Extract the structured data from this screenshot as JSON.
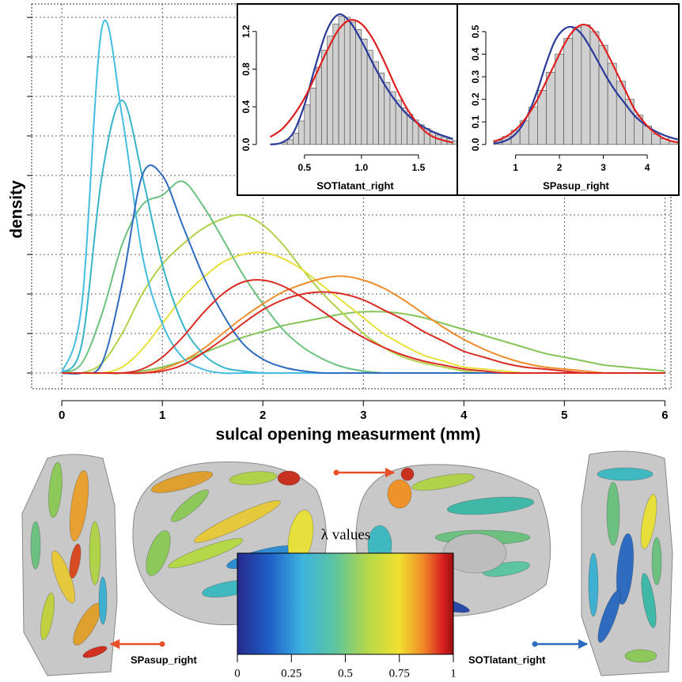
{
  "chart_data": [
    {
      "type": "line",
      "x_label": "sulcal opening measurment (mm)",
      "y_label": "density",
      "xlim": [
        -0.3,
        6.06
      ],
      "xticks": [
        0,
        1,
        2,
        3,
        4,
        5,
        6
      ],
      "ylim": [
        -0.08,
        1.868
      ],
      "yticks": [
        0,
        0.2,
        0.4,
        0.6,
        0.8,
        1.0,
        1.2,
        1.4,
        1.6,
        1.8
      ],
      "grid": true,
      "x": [
        0,
        0.2,
        0.4,
        0.6,
        0.8,
        1.0,
        1.2,
        1.4,
        1.6,
        1.8,
        2.0,
        2.2,
        2.4,
        2.6,
        2.8,
        3.0,
        3.2,
        3.4,
        3.6,
        3.8,
        4.0,
        4.2,
        4.4,
        4.6,
        4.8,
        5.0,
        5.2,
        5.4,
        5.6,
        5.8,
        6.0
      ],
      "series": [
        {
          "color": "#86c45a",
          "values": [
            0,
            0,
            0,
            0,
            0.01,
            0.03,
            0.06,
            0.1,
            0.14,
            0.18,
            0.21,
            0.24,
            0.26,
            0.28,
            0.3,
            0.31,
            0.31,
            0.3,
            0.28,
            0.25,
            0.22,
            0.19,
            0.16,
            0.13,
            0.1,
            0.08,
            0.06,
            0.04,
            0.03,
            0.02,
            0.01
          ]
        },
        {
          "color": "#b0d24a",
          "values": [
            0,
            0,
            0.05,
            0.2,
            0.4,
            0.55,
            0.65,
            0.73,
            0.78,
            0.8,
            0.75,
            0.65,
            0.52,
            0.4,
            0.3,
            0.2,
            0.13,
            0.08,
            0.05,
            0.03,
            0.01,
            0,
            0,
            0,
            0,
            0,
            0,
            0,
            0,
            0,
            0
          ]
        },
        {
          "color": "#e6df3c",
          "values": [
            0,
            0,
            0,
            0.03,
            0.12,
            0.25,
            0.38,
            0.48,
            0.56,
            0.6,
            0.61,
            0.58,
            0.52,
            0.44,
            0.36,
            0.28,
            0.2,
            0.14,
            0.09,
            0.06,
            0.03,
            0.02,
            0.01,
            0,
            0,
            0,
            0,
            0,
            0,
            0,
            0
          ]
        },
        {
          "color": "#6cc080",
          "values": [
            0,
            0.05,
            0.3,
            0.65,
            0.85,
            0.9,
            0.97,
            0.85,
            0.68,
            0.5,
            0.35,
            0.22,
            0.13,
            0.07,
            0.03,
            0.01,
            0,
            0,
            0,
            0,
            0,
            0,
            0,
            0,
            0,
            0,
            0,
            0,
            0,
            0,
            0
          ]
        },
        {
          "color": "#ef8c2c",
          "values": [
            0,
            0,
            0,
            0,
            0,
            0.02,
            0.06,
            0.12,
            0.2,
            0.28,
            0.35,
            0.41,
            0.45,
            0.48,
            0.49,
            0.47,
            0.43,
            0.37,
            0.3,
            0.23,
            0.17,
            0.12,
            0.08,
            0.05,
            0.03,
            0.02,
            0.01,
            0,
            0,
            0,
            0
          ]
        },
        {
          "color": "#38b4c8",
          "values": [
            0,
            0.15,
            1.0,
            1.38,
            1.0,
            0.55,
            0.25,
            0.1,
            0.03,
            0.01,
            0,
            0,
            0,
            0,
            0,
            0,
            0,
            0,
            0,
            0,
            0,
            0,
            0,
            0,
            0,
            0,
            0,
            0,
            0,
            0,
            0
          ]
        },
        {
          "color": "#45bde0",
          "values": [
            0,
            0.35,
            1.75,
            1.3,
            0.6,
            0.25,
            0.08,
            0.02,
            0,
            0,
            0,
            0,
            0,
            0,
            0,
            0,
            0,
            0,
            0,
            0,
            0,
            0,
            0,
            0,
            0,
            0,
            0,
            0,
            0,
            0,
            0
          ]
        },
        {
          "color": "#2f6cc0",
          "values": [
            0,
            0,
            0.05,
            0.45,
            1.0,
            1.0,
            0.75,
            0.5,
            0.3,
            0.15,
            0.07,
            0.03,
            0.01,
            0,
            0,
            0,
            0,
            0,
            0,
            0,
            0,
            0,
            0,
            0,
            0,
            0,
            0,
            0,
            0,
            0,
            0
          ]
        },
        {
          "color": "#d92b24",
          "values": [
            0,
            0,
            0,
            0,
            0,
            0.01,
            0.04,
            0.1,
            0.17,
            0.25,
            0.32,
            0.37,
            0.4,
            0.41,
            0.4,
            0.37,
            0.32,
            0.27,
            0.21,
            0.16,
            0.11,
            0.08,
            0.05,
            0.03,
            0.02,
            0.01,
            0,
            0,
            0,
            0,
            0
          ]
        },
        {
          "color": "#d92b24",
          "values": [
            0,
            0,
            0,
            0,
            0.02,
            0.08,
            0.18,
            0.3,
            0.4,
            0.46,
            0.47,
            0.44,
            0.38,
            0.31,
            0.24,
            0.18,
            0.13,
            0.09,
            0.06,
            0.04,
            0.02,
            0.01,
            0,
            0,
            0,
            0,
            0,
            0,
            0,
            0,
            0
          ]
        }
      ]
    },
    {
      "type": "histogram",
      "x_label": "SOTlatant_right",
      "color": "#d0d0d0",
      "xlim": [
        0.12,
        1.84
      ],
      "xticks": [
        0.5,
        {
          "value": 1,
          "label": "1.0"
        },
        1.5
      ],
      "ylim": [
        -0.06,
        1.45
      ],
      "yticks": [
        {
          "value": 0,
          "label": "0.0"
        },
        0.4,
        0.8,
        1.2
      ],
      "bins": [
        0.3,
        0.35,
        0.4,
        0.45,
        0.5,
        0.55,
        0.6,
        0.65,
        0.7,
        0.75,
        0.8,
        0.85,
        0.9,
        0.95,
        1.0,
        1.05,
        1.1,
        1.15,
        1.2,
        1.25,
        1.3,
        1.35,
        1.4,
        1.45,
        1.5,
        1.55,
        1.6,
        1.65,
        1.7,
        1.75,
        1.8,
        1.85
      ],
      "values": [
        0.02,
        0.05,
        0.12,
        0.25,
        0.42,
        0.6,
        0.82,
        1.0,
        1.15,
        1.28,
        1.36,
        1.35,
        1.3,
        1.22,
        1.12,
        1.0,
        0.88,
        0.76,
        0.66,
        0.56,
        0.47,
        0.39,
        0.32,
        0.26,
        0.21,
        0.17,
        0.13,
        0.1,
        0.08,
        0.06,
        0.04
      ],
      "fits": [
        {
          "color": "#2a3a9a",
          "x": [
            0.2,
            0.3,
            0.4,
            0.5,
            0.6,
            0.7,
            0.8,
            0.9,
            1.0,
            1.1,
            1.2,
            1.3,
            1.4,
            1.5,
            1.6,
            1.7,
            1.8
          ],
          "values": [
            0,
            0.02,
            0.12,
            0.42,
            0.85,
            1.22,
            1.38,
            1.3,
            1.1,
            0.86,
            0.64,
            0.46,
            0.32,
            0.22,
            0.15,
            0.1,
            0.06
          ]
        },
        {
          "color": "#e02020",
          "x": [
            0.2,
            0.3,
            0.4,
            0.5,
            0.6,
            0.7,
            0.8,
            0.9,
            1.0,
            1.1,
            1.2,
            1.3,
            1.4,
            1.5,
            1.6,
            1.7,
            1.8
          ],
          "values": [
            0.08,
            0.16,
            0.3,
            0.49,
            0.74,
            1.0,
            1.22,
            1.32,
            1.28,
            1.12,
            0.88,
            0.61,
            0.38,
            0.21,
            0.1,
            0.05,
            0.02
          ]
        }
      ]
    },
    {
      "type": "histogram",
      "x_label": "SPasup_right",
      "color": "#d0d0d0",
      "xlim": [
        0.43,
        4.72
      ],
      "xticks": [
        1,
        2,
        3,
        4
      ],
      "ylim": [
        -0.025,
        0.605
      ],
      "yticks": [
        {
          "value": 0,
          "label": "0.0"
        },
        0.1,
        0.2,
        0.3,
        0.4,
        0.5
      ],
      "bins": [
        0.5,
        0.7,
        0.9,
        1.1,
        1.3,
        1.5,
        1.7,
        1.9,
        2.1,
        2.3,
        2.5,
        2.7,
        2.9,
        3.1,
        3.3,
        3.5,
        3.7,
        3.9,
        4.1,
        4.3,
        4.5,
        4.7
      ],
      "values": [
        0.018,
        0.035,
        0.063,
        0.105,
        0.165,
        0.24,
        0.32,
        0.4,
        0.47,
        0.52,
        0.53,
        0.5,
        0.44,
        0.36,
        0.28,
        0.2,
        0.13,
        0.082,
        0.047,
        0.025,
        0.013
      ],
      "fits": [
        {
          "color": "#2a3a9a",
          "x": [
            0.5,
            0.7,
            0.9,
            1.1,
            1.3,
            1.5,
            1.7,
            1.9,
            2.1,
            2.3,
            2.5,
            2.7,
            2.9,
            3.1,
            3.3,
            3.5,
            3.7,
            3.9,
            4.1,
            4.3,
            4.5,
            4.7
          ],
          "values": [
            0.005,
            0.012,
            0.03,
            0.07,
            0.14,
            0.24,
            0.36,
            0.46,
            0.51,
            0.52,
            0.49,
            0.43,
            0.36,
            0.29,
            0.23,
            0.18,
            0.13,
            0.095,
            0.068,
            0.048,
            0.033,
            0.022
          ]
        },
        {
          "color": "#e02020",
          "x": [
            0.5,
            0.7,
            0.9,
            1.1,
            1.3,
            1.5,
            1.7,
            1.9,
            2.1,
            2.3,
            2.5,
            2.7,
            2.9,
            3.1,
            3.3,
            3.5,
            3.7,
            3.9,
            4.1,
            4.3,
            4.5,
            4.7
          ],
          "values": [
            0.013,
            0.027,
            0.05,
            0.085,
            0.135,
            0.2,
            0.28,
            0.36,
            0.44,
            0.5,
            0.53,
            0.52,
            0.47,
            0.4,
            0.32,
            0.24,
            0.16,
            0.105,
            0.063,
            0.035,
            0.018,
            0.009
          ]
        }
      ]
    },
    {
      "type": "colorbar",
      "label": "λ values",
      "xlim": [
        0,
        1
      ],
      "xticks": [
        0,
        0.25,
        0.5,
        0.75,
        1
      ]
    }
  ],
  "brain_labels": {
    "left": "SPasup_right",
    "right": "SOTlatant_right"
  }
}
